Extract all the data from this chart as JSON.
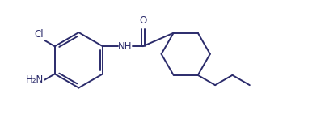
{
  "line_color": "#2b2b6b",
  "bg_color": "#ffffff",
  "text_color": "#2b2b6b",
  "line_width": 1.4,
  "font_size": 8.5,
  "xlim": [
    0,
    10.5
  ],
  "ylim": [
    -2.2,
    2.2
  ]
}
